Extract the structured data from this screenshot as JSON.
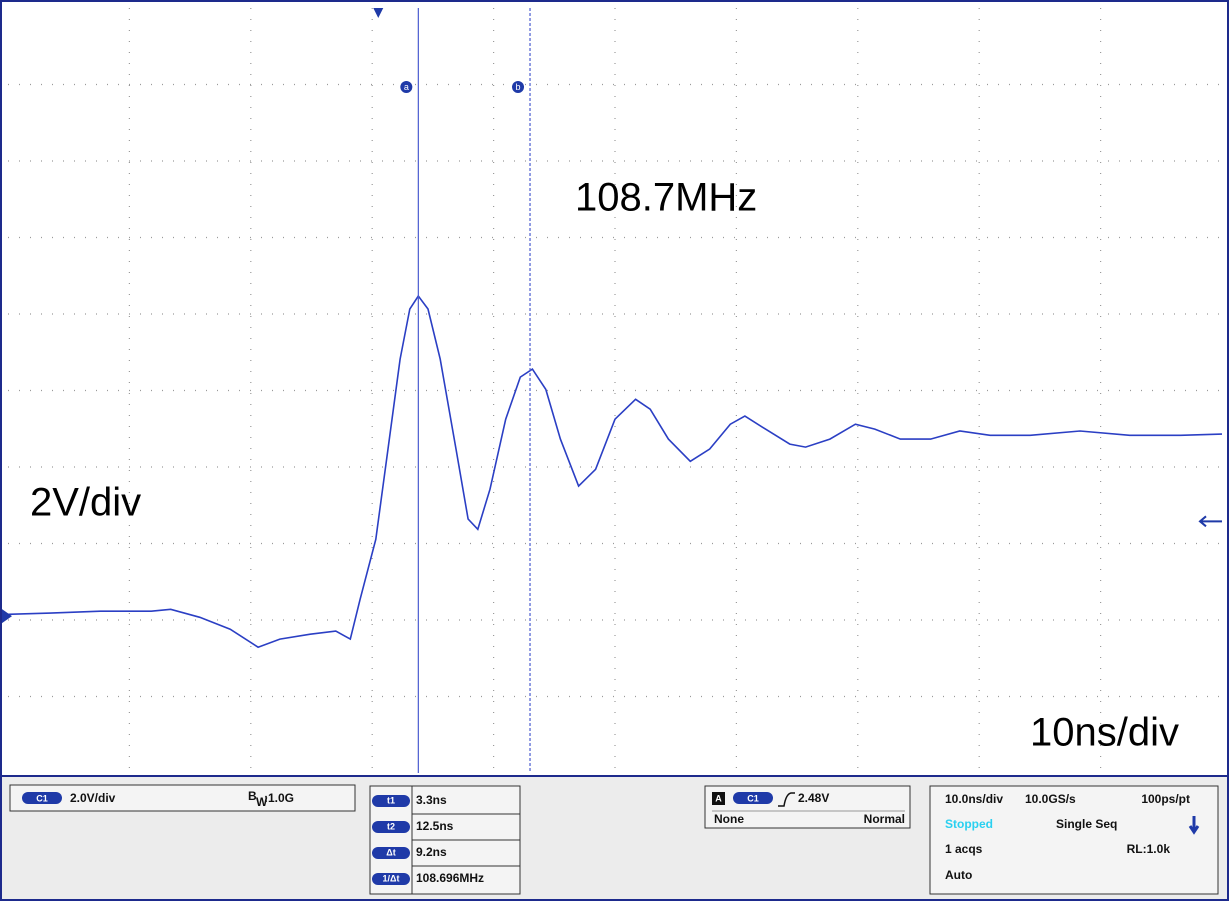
{
  "chart_data": {
    "type": "line",
    "x": [
      -30.5,
      -27.0,
      -22.9,
      -18.7,
      -17.1,
      -14.7,
      -12.2,
      -9.9,
      -8.1,
      -5.6,
      -3.5,
      -2.3,
      -1.5,
      -0.2,
      0.8,
      1.8,
      2.6,
      3.3,
      4.1,
      5.1,
      6.4,
      7.4,
      8.2,
      9.2,
      10.5,
      11.7,
      12.7,
      13.8,
      15.0,
      16.5,
      17.9,
      19.5,
      21.2,
      22.4,
      23.9,
      25.7,
      27.3,
      29.0,
      30.2,
      31.9,
      33.9,
      35.2,
      37.2,
      39.3,
      40.9,
      43.0,
      45.5,
      47.9,
      50.4,
      53.7,
      57.8,
      61.9,
      66.1,
      69.5
    ],
    "values": [
      0.05,
      0.08,
      0.13,
      0.13,
      0.18,
      -0.03,
      -0.34,
      -0.81,
      -0.6,
      -0.47,
      -0.39,
      -0.6,
      0.44,
      2.01,
      4.37,
      6.72,
      8.03,
      8.37,
      8.03,
      6.72,
      4.37,
      2.54,
      2.27,
      3.32,
      5.15,
      6.25,
      6.46,
      5.93,
      4.63,
      3.4,
      3.84,
      5.15,
      5.67,
      5.41,
      4.63,
      4.05,
      4.37,
      5.02,
      5.23,
      4.89,
      4.5,
      4.42,
      4.63,
      5.02,
      4.89,
      4.63,
      4.63,
      4.84,
      4.73,
      4.73,
      4.84,
      4.73,
      4.73,
      4.76
    ],
    "color": "#2b3fc4",
    "xlim": [
      -30.5,
      69.5
    ],
    "ylim": [
      -4.1,
      15.9
    ]
  },
  "annotations": {
    "frequency": "108.7MHz",
    "vertical_scale": "2V/div",
    "horizontal_scale": "10ns/div"
  },
  "cursors": {
    "a": "a",
    "b": "b"
  },
  "channel": {
    "name": "C1",
    "scale": "2.0V/div",
    "bw_symbol": "B",
    "bw_sub": "W",
    "bw_value": ":1.0G"
  },
  "cursor_readout": {
    "t1_name": "t1",
    "t1": {
      "value": 3.3,
      "label": "3.3ns"
    },
    "t2_name": "t2",
    "t2": {
      "value": 12.5,
      "label": "12.5ns"
    },
    "dt_name": "Δt",
    "dt": "9.2ns",
    "freq_name": "1/Δt",
    "freq": "108.696MHz"
  },
  "trigger": {
    "mode_letter": "A",
    "source": "C1",
    "level": {
      "value": 2.48,
      "label": "2.48V"
    },
    "coupling": "None",
    "mode": "Normal"
  },
  "acquisition": {
    "timebase": "10.0ns/div",
    "sample_rate": "10.0GS/s",
    "resolution": "100ps/pt",
    "state": "Stopped",
    "sequence": "Single Seq",
    "count": "1 acqs",
    "record_length": "RL:1.0k",
    "trigger_type": "Auto"
  }
}
